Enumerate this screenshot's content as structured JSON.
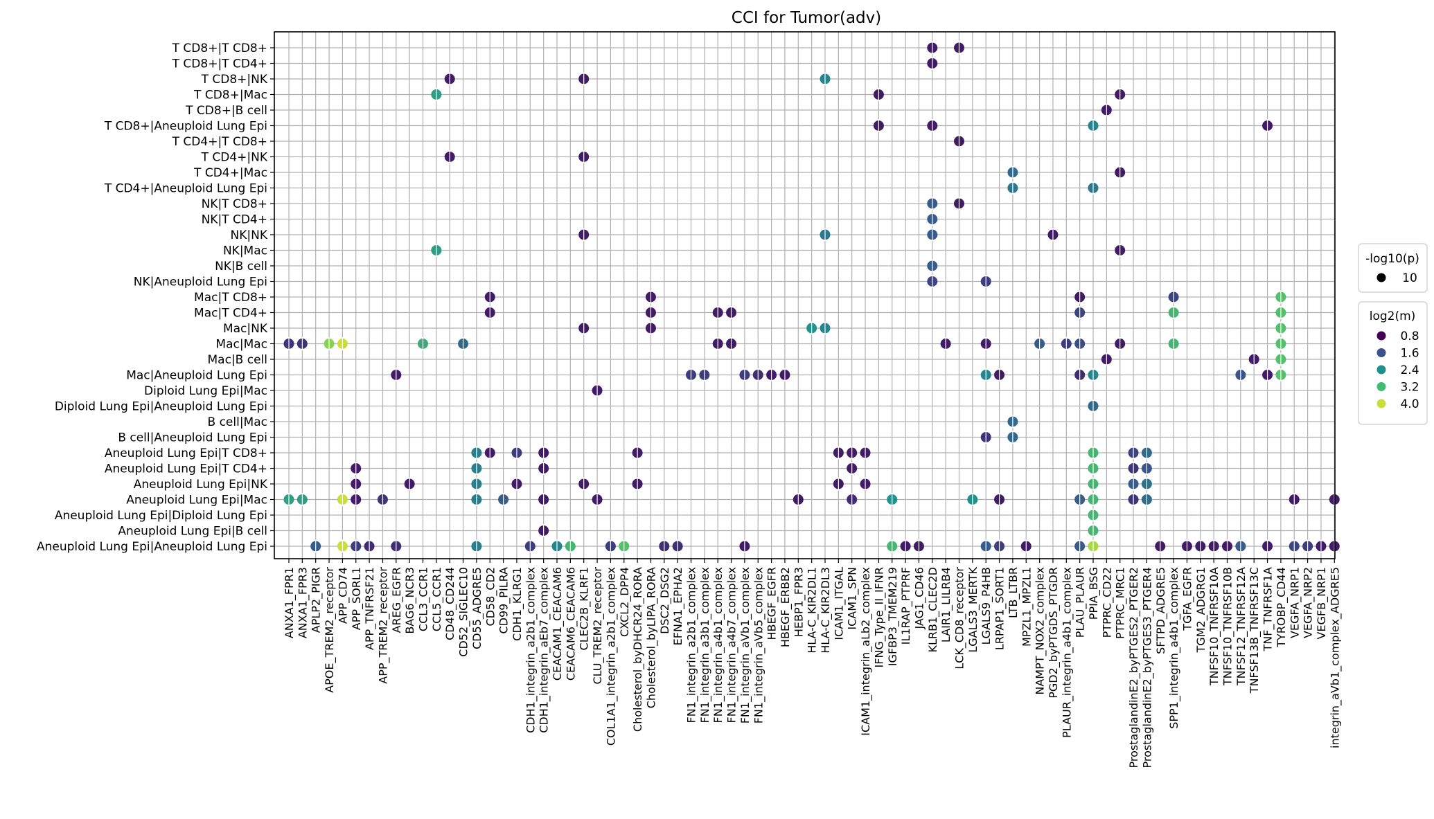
{
  "chart_data": {
    "type": "scatter",
    "title": "CCI for Tumor(adv)",
    "xlabel": "",
    "ylabel": "",
    "grid": true,
    "legend_position": "right",
    "x_categories": [
      "ANXA1_FPR1",
      "ANXA1_FPR3",
      "APLP2_PIGR",
      "APOE_TREM2_receptor",
      "APP_CD74",
      "APP_SORL1",
      "APP_TNFRSF21",
      "APP_TREM2_receptor",
      "AREG_EGFR",
      "BAG6_NCR3",
      "CCL3_CCR1",
      "CCL5_CCR1",
      "CD48_CD244",
      "CD52_SIGLEC10",
      "CD55_ADGRE5",
      "CD58_CD2",
      "CD99_PILRA",
      "CDH1_KLRG1",
      "CDH1_integrin_a2b1_complex",
      "CDH1_integrin_aEb7_complex",
      "CEACAM1_CEACAM6",
      "CEACAM6_CEACAM6",
      "CLEC2B_KLRF1",
      "CLU_TREM2_receptor",
      "COL1A1_integrin_a2b1_complex",
      "CXCL2_DPP4",
      "Cholesterol_byDHCR24_RORA",
      "Cholesterol_byLIPA_RORA",
      "DSC2_DSG2",
      "EFNA1_EPHA2",
      "FN1_integrin_a2b1_complex",
      "FN1_integrin_a3b1_complex",
      "FN1_integrin_a4b1_complex",
      "FN1_integrin_a4b7_complex",
      "FN1_integrin_aVb1_complex",
      "FN1_integrin_aVb5_complex",
      "HBEGF_EGFR",
      "HBEGF_ERBB2",
      "HEBP1_FPR3",
      "HLA-C_KIR2DL1",
      "HLA-C_KIR2DL3",
      "ICAM1_ITGAL",
      "ICAM1_SPN",
      "ICAM1_integrin_aLb2_complex",
      "IFNG_Type_II_IFNR",
      "IGFBP3_TMEM219",
      "IL1RAP_PTPRF",
      "JAG1_CD46",
      "KLRB1_CLEC2D",
      "LAIR1_LILRB4",
      "LCK_CD8_receptor",
      "LGALS3_MERTK",
      "LGALS9_P4HB",
      "LRPAP1_SORT1",
      "LTB_LTBR",
      "MPZL1_MPZL1",
      "NAMPT_NOX2_complex",
      "PGD2_byPTGDS_PTGDR",
      "PLAUR_integrin_a4b1_complex",
      "PLAU_PLAUR",
      "PPIA_BSG",
      "PTPRC_CD22",
      "PTPRC_MRC1",
      "ProstaglandinE2_byPTGES2_PTGER2",
      "ProstaglandinE2_byPTGES3_PTGER4",
      "SFTPD_ADGRE5",
      "SPP1_integrin_a4b1_complex",
      "TGFA_EGFR",
      "TGM2_ADGRG1",
      "TNFSF10_TNFRSF10A",
      "TNFSF10_TNFRSF10B",
      "TNFSF12_TNFRSF12A",
      "TNFSF13B_TNFRSF13C",
      "TNF_TNFRSF1A",
      "TYROBP_CD44",
      "VEGFA_NRP1",
      "VEGFA_NRP2",
      "VEGFB_NRP1",
      "integrin_aVb1_complex_ADGRE5"
    ],
    "y_categories": [
      "T CD8+|T CD8+",
      "T CD8+|T CD4+",
      "T CD8+|NK",
      "T CD8+|Mac",
      "T CD8+|B cell",
      "T CD8+|Aneuploid Lung Epi",
      "T CD4+|T CD8+",
      "T CD4+|NK",
      "T CD4+|Mac",
      "T CD4+|Aneuploid Lung Epi",
      "NK|T CD8+",
      "NK|T CD4+",
      "NK|NK",
      "NK|Mac",
      "NK|B cell",
      "NK|Aneuploid Lung Epi",
      "Mac|T CD8+",
      "Mac|T CD4+",
      "Mac|NK",
      "Mac|Mac",
      "Mac|B cell",
      "Mac|Aneuploid Lung Epi",
      "Diploid Lung Epi|Mac",
      "Diploid Lung Epi|Aneuploid Lung Epi",
      "B cell|Mac",
      "B cell|Aneuploid Lung Epi",
      "Aneuploid Lung Epi|T CD8+",
      "Aneuploid Lung Epi|T CD4+",
      "Aneuploid Lung Epi|NK",
      "Aneuploid Lung Epi|Mac",
      "Aneuploid Lung Epi|Diploid Lung Epi",
      "Aneuploid Lung Epi|B cell",
      "Aneuploid Lung Epi|Aneuploid Lung Epi"
    ],
    "color_scale": {
      "title": "log2(m)",
      "entries": [
        {
          "label": "0.8",
          "value": 0.8,
          "color": "#440154"
        },
        {
          "label": "1.6",
          "value": 1.6,
          "color": "#3b528b"
        },
        {
          "label": "2.4",
          "value": 2.4,
          "color": "#21918c"
        },
        {
          "label": "3.2",
          "value": 3.2,
          "color": "#3fbc73"
        },
        {
          "label": "4.0",
          "value": 4.0,
          "color": "#c8dd3c"
        }
      ]
    },
    "size_legend": {
      "title": "-log10(p)",
      "entries": [
        {
          "label": "10",
          "value": 10
        }
      ]
    },
    "points": [
      [
        "KLRB1_CLEC2D",
        "T CD8+|T CD8+",
        0.8
      ],
      [
        "LCK_CD8_receptor",
        "T CD8+|T CD8+",
        0.8
      ],
      [
        "KLRB1_CLEC2D",
        "T CD8+|T CD4+",
        0.8
      ],
      [
        "CD48_CD244",
        "T CD8+|NK",
        0.8
      ],
      [
        "CLEC2B_KLRF1",
        "T CD8+|NK",
        0.8
      ],
      [
        "HLA-C_KIR2DL3",
        "T CD8+|NK",
        2.2
      ],
      [
        "CCL5_CCR1",
        "T CD8+|Mac",
        2.6
      ],
      [
        "IFNG_Type_II_IFNR",
        "T CD8+|Mac",
        0.8
      ],
      [
        "PTPRC_MRC1",
        "T CD8+|Mac",
        0.8
      ],
      [
        "PTPRC_CD22",
        "T CD8+|B cell",
        0.8
      ],
      [
        "IFNG_Type_II_IFNR",
        "T CD8+|Aneuploid Lung Epi",
        0.8
      ],
      [
        "KLRB1_CLEC2D",
        "T CD8+|Aneuploid Lung Epi",
        0.8
      ],
      [
        "PPIA_BSG",
        "T CD8+|Aneuploid Lung Epi",
        2.2
      ],
      [
        "TNF_TNFRSF1A",
        "T CD8+|Aneuploid Lung Epi",
        0.8
      ],
      [
        "LCK_CD8_receptor",
        "T CD4+|T CD8+",
        0.8
      ],
      [
        "CD48_CD244",
        "T CD4+|NK",
        0.8
      ],
      [
        "CLEC2B_KLRF1",
        "T CD4+|NK",
        0.8
      ],
      [
        "LTB_LTBR",
        "T CD4+|Mac",
        1.8
      ],
      [
        "PTPRC_MRC1",
        "T CD4+|Mac",
        0.8
      ],
      [
        "LTB_LTBR",
        "T CD4+|Aneuploid Lung Epi",
        2.0
      ],
      [
        "PPIA_BSG",
        "T CD4+|Aneuploid Lung Epi",
        2.0
      ],
      [
        "KLRB1_CLEC2D",
        "NK|T CD8+",
        1.6
      ],
      [
        "LCK_CD8_receptor",
        "NK|T CD8+",
        0.8
      ],
      [
        "KLRB1_CLEC2D",
        "NK|T CD4+",
        1.6
      ],
      [
        "CLEC2B_KLRF1",
        "NK|NK",
        0.8
      ],
      [
        "HLA-C_KIR2DL3",
        "NK|NK",
        2.0
      ],
      [
        "KLRB1_CLEC2D",
        "NK|NK",
        1.6
      ],
      [
        "PGD2_byPTGDS_PTGDR",
        "NK|NK",
        0.8
      ],
      [
        "CCL5_CCR1",
        "NK|Mac",
        2.6
      ],
      [
        "PTPRC_MRC1",
        "NK|Mac",
        0.8
      ],
      [
        "KLRB1_CLEC2D",
        "NK|B cell",
        1.6
      ],
      [
        "KLRB1_CLEC2D",
        "NK|Aneuploid Lung Epi",
        1.3
      ],
      [
        "LGALS9_P4HB",
        "NK|Aneuploid Lung Epi",
        1.2
      ],
      [
        "CD58_CD2",
        "Mac|T CD8+",
        0.8
      ],
      [
        "Cholesterol_byLIPA_RORA",
        "Mac|T CD8+",
        0.8
      ],
      [
        "PLAU_PLAUR",
        "Mac|T CD8+",
        0.8
      ],
      [
        "SPP1_integrin_a4b1_complex",
        "Mac|T CD8+",
        1.3
      ],
      [
        "TYROBP_CD44",
        "Mac|T CD8+",
        3.2
      ],
      [
        "CD58_CD2",
        "Mac|T CD4+",
        0.8
      ],
      [
        "Cholesterol_byLIPA_RORA",
        "Mac|T CD4+",
        0.8
      ],
      [
        "FN1_integrin_a4b1_complex",
        "Mac|T CD4+",
        0.8
      ],
      [
        "FN1_integrin_a4b7_complex",
        "Mac|T CD4+",
        0.8
      ],
      [
        "PLAU_PLAUR",
        "Mac|T CD4+",
        1.3
      ],
      [
        "SPP1_integrin_a4b1_complex",
        "Mac|T CD4+",
        3.0
      ],
      [
        "TYROBP_CD44",
        "Mac|T CD4+",
        3.2
      ],
      [
        "CLEC2B_KLRF1",
        "Mac|NK",
        0.8
      ],
      [
        "Cholesterol_byLIPA_RORA",
        "Mac|NK",
        0.8
      ],
      [
        "HLA-C_KIR2DL1",
        "Mac|NK",
        2.4
      ],
      [
        "HLA-C_KIR2DL3",
        "Mac|NK",
        2.2
      ],
      [
        "TYROBP_CD44",
        "Mac|NK",
        3.2
      ],
      [
        "ANXA1_FPR1",
        "Mac|Mac",
        1.1
      ],
      [
        "ANXA1_FPR3",
        "Mac|Mac",
        1.1
      ],
      [
        "APOE_TREM2_receptor",
        "Mac|Mac",
        3.6
      ],
      [
        "APP_CD74",
        "Mac|Mac",
        4.0
      ],
      [
        "CCL3_CCR1",
        "Mac|Mac",
        2.8
      ],
      [
        "CD52_SIGLEC10",
        "Mac|Mac",
        1.8
      ],
      [
        "FN1_integrin_a4b1_complex",
        "Mac|Mac",
        0.8
      ],
      [
        "FN1_integrin_a4b7_complex",
        "Mac|Mac",
        0.8
      ],
      [
        "LAIR1_LILRB4",
        "Mac|Mac",
        0.8
      ],
      [
        "LGALS9_P4HB",
        "Mac|Mac",
        0.8
      ],
      [
        "NAMPT_NOX2_complex",
        "Mac|Mac",
        1.6
      ],
      [
        "PLAUR_integrin_a4b1_complex",
        "Mac|Mac",
        1.2
      ],
      [
        "PLAU_PLAUR",
        "Mac|Mac",
        1.4
      ],
      [
        "PTPRC_MRC1",
        "Mac|Mac",
        0.8
      ],
      [
        "SPP1_integrin_a4b1_complex",
        "Mac|Mac",
        3.0
      ],
      [
        "TYROBP_CD44",
        "Mac|Mac",
        3.2
      ],
      [
        "PTPRC_CD22",
        "Mac|B cell",
        0.8
      ],
      [
        "TNFSF13B_TNFRSF13C",
        "Mac|B cell",
        0.8
      ],
      [
        "TYROBP_CD44",
        "Mac|B cell",
        3.2
      ],
      [
        "AREG_EGFR",
        "Mac|Aneuploid Lung Epi",
        0.8
      ],
      [
        "FN1_integrin_a2b1_complex",
        "Mac|Aneuploid Lung Epi",
        1.2
      ],
      [
        "FN1_integrin_a3b1_complex",
        "Mac|Aneuploid Lung Epi",
        1.2
      ],
      [
        "FN1_integrin_aVb1_complex",
        "Mac|Aneuploid Lung Epi",
        1.2
      ],
      [
        "FN1_integrin_aVb5_complex",
        "Mac|Aneuploid Lung Epi",
        1.0
      ],
      [
        "HBEGF_EGFR",
        "Mac|Aneuploid Lung Epi",
        0.8
      ],
      [
        "HBEGF_ERBB2",
        "Mac|Aneuploid Lung Epi",
        0.8
      ],
      [
        "LGALS9_P4HB",
        "Mac|Aneuploid Lung Epi",
        2.2
      ],
      [
        "LRPAP1_SORT1",
        "Mac|Aneuploid Lung Epi",
        0.8
      ],
      [
        "PLAU_PLAUR",
        "Mac|Aneuploid Lung Epi",
        1.0
      ],
      [
        "PPIA_BSG",
        "Mac|Aneuploid Lung Epi",
        2.2
      ],
      [
        "TNFSF12_TNFRSF12A",
        "Mac|Aneuploid Lung Epi",
        1.5
      ],
      [
        "TNF_TNFRSF1A",
        "Mac|Aneuploid Lung Epi",
        0.8
      ],
      [
        "TYROBP_CD44",
        "Mac|Aneuploid Lung Epi",
        3.2
      ],
      [
        "CLU_TREM2_receptor",
        "Diploid Lung Epi|Mac",
        0.8
      ],
      [
        "PPIA_BSG",
        "Diploid Lung Epi|Aneuploid Lung Epi",
        1.8
      ],
      [
        "LTB_LTBR",
        "B cell|Mac",
        1.8
      ],
      [
        "LGALS9_P4HB",
        "B cell|Aneuploid Lung Epi",
        1.1
      ],
      [
        "LTB_LTBR",
        "B cell|Aneuploid Lung Epi",
        1.8
      ],
      [
        "CD55_ADGRE5",
        "Aneuploid Lung Epi|T CD8+",
        2.1
      ],
      [
        "CD58_CD2",
        "Aneuploid Lung Epi|T CD8+",
        0.8
      ],
      [
        "CDH1_KLRG1",
        "Aneuploid Lung Epi|T CD8+",
        1.2
      ],
      [
        "CDH1_integrin_aEb7_complex",
        "Aneuploid Lung Epi|T CD8+",
        0.8
      ],
      [
        "Cholesterol_byDHCR24_RORA",
        "Aneuploid Lung Epi|T CD8+",
        0.8
      ],
      [
        "ICAM1_ITGAL",
        "Aneuploid Lung Epi|T CD8+",
        0.8
      ],
      [
        "ICAM1_SPN",
        "Aneuploid Lung Epi|T CD8+",
        0.8
      ],
      [
        "ICAM1_integrin_aLb2_complex",
        "Aneuploid Lung Epi|T CD8+",
        0.8
      ],
      [
        "PPIA_BSG",
        "Aneuploid Lung Epi|T CD8+",
        3.0
      ],
      [
        "ProstaglandinE2_byPTGES2_PTGER2",
        "Aneuploid Lung Epi|T CD8+",
        1.3
      ],
      [
        "ProstaglandinE2_byPTGES3_PTGER4",
        "Aneuploid Lung Epi|T CD8+",
        1.8
      ],
      [
        "APP_SORL1",
        "Aneuploid Lung Epi|T CD4+",
        0.8
      ],
      [
        "CD55_ADGRE5",
        "Aneuploid Lung Epi|T CD4+",
        2.1
      ],
      [
        "CDH1_integrin_aEb7_complex",
        "Aneuploid Lung Epi|T CD4+",
        0.8
      ],
      [
        "ICAM1_SPN",
        "Aneuploid Lung Epi|T CD4+",
        0.8
      ],
      [
        "PPIA_BSG",
        "Aneuploid Lung Epi|T CD4+",
        3.0
      ],
      [
        "ProstaglandinE2_byPTGES2_PTGER2",
        "Aneuploid Lung Epi|T CD4+",
        1.1
      ],
      [
        "ProstaglandinE2_byPTGES3_PTGER4",
        "Aneuploid Lung Epi|T CD4+",
        1.5
      ],
      [
        "APP_SORL1",
        "Aneuploid Lung Epi|NK",
        0.8
      ],
      [
        "BAG6_NCR3",
        "Aneuploid Lung Epi|NK",
        0.8
      ],
      [
        "CD55_ADGRE5",
        "Aneuploid Lung Epi|NK",
        2.1
      ],
      [
        "CDH1_KLRG1",
        "Aneuploid Lung Epi|NK",
        0.8
      ],
      [
        "CLEC2B_KLRF1",
        "Aneuploid Lung Epi|NK",
        0.8
      ],
      [
        "Cholesterol_byDHCR24_RORA",
        "Aneuploid Lung Epi|NK",
        0.8
      ],
      [
        "ICAM1_ITGAL",
        "Aneuploid Lung Epi|NK",
        0.8
      ],
      [
        "ICAM1_integrin_aLb2_complex",
        "Aneuploid Lung Epi|NK",
        0.8
      ],
      [
        "PPIA_BSG",
        "Aneuploid Lung Epi|NK",
        3.0
      ],
      [
        "ProstaglandinE2_byPTGES2_PTGER2",
        "Aneuploid Lung Epi|NK",
        1.6
      ],
      [
        "ProstaglandinE2_byPTGES3_PTGER4",
        "Aneuploid Lung Epi|NK",
        1.9
      ],
      [
        "ANXA1_FPR1",
        "Aneuploid Lung Epi|Mac",
        2.6
      ],
      [
        "ANXA1_FPR3",
        "Aneuploid Lung Epi|Mac",
        2.6
      ],
      [
        "APP_CD74",
        "Aneuploid Lung Epi|Mac",
        4.0
      ],
      [
        "APP_SORL1",
        "Aneuploid Lung Epi|Mac",
        0.8
      ],
      [
        "APP_TREM2_receptor",
        "Aneuploid Lung Epi|Mac",
        1.1
      ],
      [
        "CD55_ADGRE5",
        "Aneuploid Lung Epi|Mac",
        2.1
      ],
      [
        "CD99_PILRA",
        "Aneuploid Lung Epi|Mac",
        1.6
      ],
      [
        "CDH1_integrin_aEb7_complex",
        "Aneuploid Lung Epi|Mac",
        0.8
      ],
      [
        "CLU_TREM2_receptor",
        "Aneuploid Lung Epi|Mac",
        0.8
      ],
      [
        "HEBP1_FPR3",
        "Aneuploid Lung Epi|Mac",
        0.8
      ],
      [
        "ICAM1_SPN",
        "Aneuploid Lung Epi|Mac",
        1.0
      ],
      [
        "IGFBP3_TMEM219",
        "Aneuploid Lung Epi|Mac",
        2.4
      ],
      [
        "LGALS3_MERTK",
        "Aneuploid Lung Epi|Mac",
        2.4
      ],
      [
        "LRPAP1_SORT1",
        "Aneuploid Lung Epi|Mac",
        0.8
      ],
      [
        "PLAU_PLAUR",
        "Aneuploid Lung Epi|Mac",
        1.6
      ],
      [
        "PPIA_BSG",
        "Aneuploid Lung Epi|Mac",
        3.0
      ],
      [
        "ProstaglandinE2_byPTGES2_PTGER2",
        "Aneuploid Lung Epi|Mac",
        1.1
      ],
      [
        "ProstaglandinE2_byPTGES3_PTGER4",
        "Aneuploid Lung Epi|Mac",
        1.8
      ],
      [
        "VEGFA_NRP1",
        "Aneuploid Lung Epi|Mac",
        0.8
      ],
      [
        "integrin_aVb1_complex_ADGRE5",
        "Aneuploid Lung Epi|Mac",
        0.8
      ],
      [
        "PPIA_BSG",
        "Aneuploid Lung Epi|Diploid Lung Epi",
        3.0
      ],
      [
        "CDH1_integrin_aEb7_complex",
        "Aneuploid Lung Epi|B cell",
        0.8
      ],
      [
        "PPIA_BSG",
        "Aneuploid Lung Epi|B cell",
        3.0
      ],
      [
        "APLP2_PIGR",
        "Aneuploid Lung Epi|Aneuploid Lung Epi",
        1.6
      ],
      [
        "APP_CD74",
        "Aneuploid Lung Epi|Aneuploid Lung Epi",
        4.0
      ],
      [
        "APP_SORL1",
        "Aneuploid Lung Epi|Aneuploid Lung Epi",
        1.2
      ],
      [
        "APP_TNFRSF21",
        "Aneuploid Lung Epi|Aneuploid Lung Epi",
        1.0
      ],
      [
        "AREG_EGFR",
        "Aneuploid Lung Epi|Aneuploid Lung Epi",
        1.0
      ],
      [
        "CD55_ADGRE5",
        "Aneuploid Lung Epi|Aneuploid Lung Epi",
        2.1
      ],
      [
        "CDH1_integrin_a2b1_complex",
        "Aneuploid Lung Epi|Aneuploid Lung Epi",
        1.2
      ],
      [
        "CEACAM1_CEACAM6",
        "Aneuploid Lung Epi|Aneuploid Lung Epi",
        2.2
      ],
      [
        "CEACAM6_CEACAM6",
        "Aneuploid Lung Epi|Aneuploid Lung Epi",
        3.0
      ],
      [
        "COL1A1_integrin_a2b1_complex",
        "Aneuploid Lung Epi|Aneuploid Lung Epi",
        1.2
      ],
      [
        "CXCL2_DPP4",
        "Aneuploid Lung Epi|Aneuploid Lung Epi",
        3.2
      ],
      [
        "DSC2_DSG2",
        "Aneuploid Lung Epi|Aneuploid Lung Epi",
        1.0
      ],
      [
        "EFNA1_EPHA2",
        "Aneuploid Lung Epi|Aneuploid Lung Epi",
        1.0
      ],
      [
        "FN1_integrin_aVb1_complex",
        "Aneuploid Lung Epi|Aneuploid Lung Epi",
        0.8
      ],
      [
        "IGFBP3_TMEM219",
        "Aneuploid Lung Epi|Aneuploid Lung Epi",
        3.0
      ],
      [
        "IL1RAP_PTPRF",
        "Aneuploid Lung Epi|Aneuploid Lung Epi",
        0.8
      ],
      [
        "JAG1_CD46",
        "Aneuploid Lung Epi|Aneuploid Lung Epi",
        0.8
      ],
      [
        "LGALS9_P4HB",
        "Aneuploid Lung Epi|Aneuploid Lung Epi",
        1.6
      ],
      [
        "LRPAP1_SORT1",
        "Aneuploid Lung Epi|Aneuploid Lung Epi",
        1.2
      ],
      [
        "MPZL1_MPZL1",
        "Aneuploid Lung Epi|Aneuploid Lung Epi",
        0.8
      ],
      [
        "PLAU_PLAUR",
        "Aneuploid Lung Epi|Aneuploid Lung Epi",
        1.6
      ],
      [
        "PPIA_BSG",
        "Aneuploid Lung Epi|Aneuploid Lung Epi",
        3.8
      ],
      [
        "SFTPD_ADGRE5",
        "Aneuploid Lung Epi|Aneuploid Lung Epi",
        0.8
      ],
      [
        "TGFA_EGFR",
        "Aneuploid Lung Epi|Aneuploid Lung Epi",
        0.8
      ],
      [
        "TGM2_ADGRG1",
        "Aneuploid Lung Epi|Aneuploid Lung Epi",
        0.8
      ],
      [
        "TNFSF10_TNFRSF10A",
        "Aneuploid Lung Epi|Aneuploid Lung Epi",
        0.8
      ],
      [
        "TNFSF10_TNFRSF10B",
        "Aneuploid Lung Epi|Aneuploid Lung Epi",
        0.8
      ],
      [
        "TNFSF12_TNFRSF12A",
        "Aneuploid Lung Epi|Aneuploid Lung Epi",
        1.6
      ],
      [
        "TNF_TNFRSF1A",
        "Aneuploid Lung Epi|Aneuploid Lung Epi",
        0.8
      ],
      [
        "VEGFA_NRP1",
        "Aneuploid Lung Epi|Aneuploid Lung Epi",
        1.3
      ],
      [
        "VEGFA_NRP2",
        "Aneuploid Lung Epi|Aneuploid Lung Epi",
        1.2
      ],
      [
        "VEGFB_NRP1",
        "Aneuploid Lung Epi|Aneuploid Lung Epi",
        0.8
      ],
      [
        "integrin_aVb1_complex_ADGRE5",
        "Aneuploid Lung Epi|Aneuploid Lung Epi",
        0.8
      ]
    ]
  }
}
